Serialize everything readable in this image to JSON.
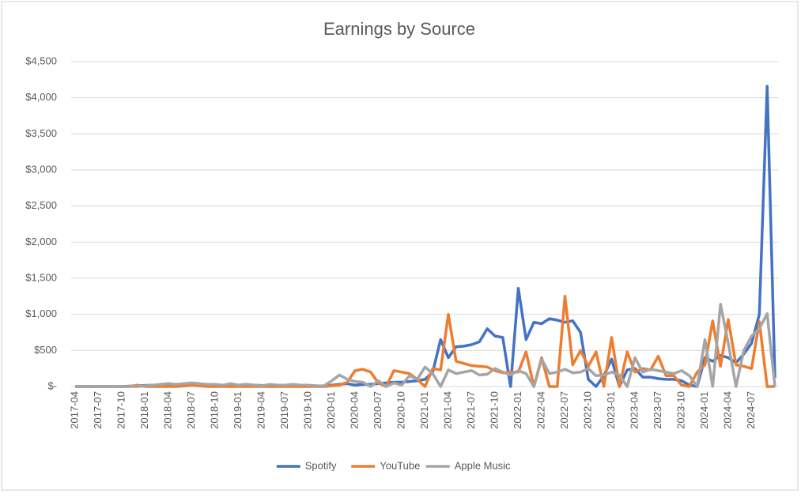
{
  "chart_data": {
    "type": "line",
    "title": "Earnings by Source",
    "categories": [
      "2017-04",
      null,
      null,
      "2017-07",
      null,
      null,
      "2017-10",
      null,
      null,
      "2018-01",
      null,
      null,
      "2018-04",
      null,
      null,
      "2018-07",
      null,
      null,
      "2018-10",
      null,
      null,
      "2019-01",
      null,
      null,
      "2019-04",
      null,
      null,
      "2019-07",
      null,
      null,
      "2019-10",
      null,
      null,
      "2020-01",
      null,
      null,
      "2020-04",
      null,
      null,
      "2020-07",
      null,
      null,
      "2020-10",
      null,
      null,
      "2021-01",
      null,
      null,
      "2021-04",
      null,
      null,
      "2021-07",
      null,
      null,
      "2021-10",
      null,
      null,
      "2022-01",
      null,
      null,
      "2022-04",
      null,
      null,
      "2022-07",
      null,
      null,
      "2022-10",
      null,
      null,
      "2023-01",
      null,
      null,
      "2023-04",
      null,
      null,
      "2023-07",
      null,
      null,
      "2023-10",
      null,
      null,
      "2024-01",
      null,
      null,
      "2024-04",
      null,
      null,
      "2024-07",
      null,
      null,
      null
    ],
    "series": [
      {
        "name": "Spotify",
        "color": "#4472c4",
        "values": [
          0,
          0,
          0,
          0,
          0,
          0,
          0,
          5,
          10,
          15,
          20,
          20,
          30,
          20,
          10,
          20,
          30,
          25,
          20,
          15,
          25,
          20,
          30,
          20,
          15,
          10,
          20,
          15,
          10,
          20,
          15,
          10,
          5,
          20,
          30,
          40,
          20,
          30,
          30,
          40,
          50,
          60,
          60,
          70,
          80,
          100,
          200,
          650,
          400,
          550,
          560,
          580,
          620,
          800,
          700,
          680,
          0,
          1360,
          650,
          890,
          870,
          940,
          920,
          890,
          910,
          750,
          100,
          0,
          150,
          380,
          0,
          230,
          250,
          130,
          130,
          110,
          100,
          100,
          80,
          20,
          0,
          400,
          350,
          430,
          400,
          330,
          450,
          600,
          1000,
          4160,
          120
        ]
      },
      {
        "name": "YouTube",
        "color": "#ed7d31",
        "values": [
          0,
          0,
          0,
          0,
          0,
          0,
          0,
          0,
          20,
          0,
          0,
          0,
          0,
          0,
          10,
          20,
          10,
          0,
          0,
          0,
          0,
          0,
          0,
          0,
          0,
          0,
          0,
          0,
          0,
          0,
          0,
          0,
          0,
          10,
          20,
          60,
          220,
          240,
          200,
          50,
          0,
          220,
          200,
          180,
          100,
          0,
          250,
          230,
          1000,
          350,
          320,
          290,
          280,
          270,
          220,
          190,
          200,
          200,
          480,
          0,
          400,
          0,
          0,
          1250,
          300,
          500,
          280,
          480,
          0,
          680,
          0,
          480,
          200,
          250,
          230,
          420,
          150,
          150,
          20,
          0,
          200,
          300,
          910,
          280,
          930,
          300,
          280,
          250,
          900,
          0,
          0
        ]
      },
      {
        "name": "Apple Music",
        "color": "#a5a5a5",
        "values": [
          0,
          0,
          0,
          0,
          0,
          0,
          0,
          0,
          0,
          10,
          20,
          30,
          40,
          30,
          40,
          50,
          40,
          30,
          30,
          20,
          40,
          20,
          30,
          20,
          10,
          30,
          20,
          20,
          30,
          20,
          20,
          10,
          10,
          80,
          160,
          100,
          70,
          60,
          0,
          80,
          0,
          50,
          20,
          150,
          100,
          270,
          180,
          0,
          230,
          180,
          200,
          220,
          160,
          170,
          250,
          200,
          160,
          220,
          180,
          0,
          380,
          180,
          200,
          240,
          190,
          200,
          250,
          150,
          160,
          200,
          160,
          0,
          400,
          200,
          240,
          220,
          200,
          180,
          220,
          150,
          0,
          650,
          0,
          1140,
          600,
          0,
          500,
          700,
          800,
          1010,
          0
        ]
      }
    ],
    "ylim": [
      0,
      4500
    ],
    "yticks": [
      {
        "value": 0,
        "label": "$-"
      },
      {
        "value": 500,
        "label": "$500"
      },
      {
        "value": 1000,
        "label": "$1,000"
      },
      {
        "value": 1500,
        "label": "$1,500"
      },
      {
        "value": 2000,
        "label": "$2,000"
      },
      {
        "value": 2500,
        "label": "$2,500"
      },
      {
        "value": 3000,
        "label": "$3,000"
      },
      {
        "value": 3500,
        "label": "$3,500"
      },
      {
        "value": 4000,
        "label": "$4,000"
      },
      {
        "value": 4500,
        "label": "$4,500"
      }
    ],
    "grid": true,
    "legend": "bottom"
  }
}
